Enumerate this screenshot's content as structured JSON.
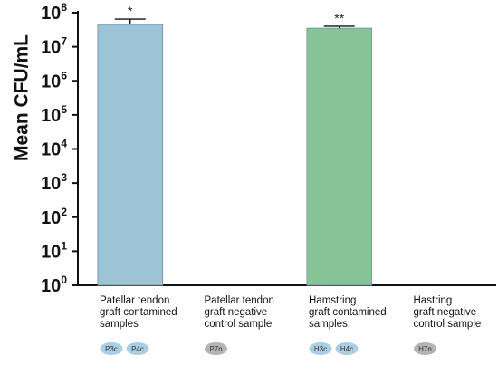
{
  "chart_data": {
    "type": "bar",
    "ylabel": "Mean CFU/mL",
    "yscale": "log",
    "ylim": [
      1,
      100000000
    ],
    "yticks": [
      {
        "base": "10",
        "exp": "0"
      },
      {
        "base": "10",
        "exp": "1"
      },
      {
        "base": "10",
        "exp": "2"
      },
      {
        "base": "10",
        "exp": "3"
      },
      {
        "base": "10",
        "exp": "4"
      },
      {
        "base": "10",
        "exp": "5"
      },
      {
        "base": "10",
        "exp": "6"
      },
      {
        "base": "10",
        "exp": "7"
      },
      {
        "base": "10",
        "exp": "8"
      }
    ],
    "categories": [
      {
        "label_lines": [
          "Patellar tendon",
          "graft contamined",
          "samples"
        ],
        "value": 45000000,
        "error": 20000000,
        "significance": "*",
        "color": "#9dc4d6",
        "samples": [
          {
            "label": "P3c",
            "color": "#a8d0e2"
          },
          {
            "label": "P4c",
            "color": "#a8d0e2"
          }
        ]
      },
      {
        "label_lines": [
          "Patellar tendon",
          "graft negative",
          "control sample"
        ],
        "value": null,
        "error": null,
        "significance": "",
        "color": "#9dc4d6",
        "samples": [
          {
            "label": "P7n",
            "color": "#b4b4b4"
          }
        ]
      },
      {
        "label_lines": [
          "Hamstring",
          "graft contamined",
          "samples"
        ],
        "value": 35000000,
        "error": 5000000,
        "significance": "**",
        "color": "#86c496",
        "samples": [
          {
            "label": "H3c",
            "color": "#a8d0e2"
          },
          {
            "label": "H4c",
            "color": "#a8d0e2"
          }
        ]
      },
      {
        "label_lines": [
          "Hastring",
          "graft negative",
          "control sample"
        ],
        "value": null,
        "error": null,
        "significance": "",
        "color": "#86c496",
        "samples": [
          {
            "label": "H7n",
            "color": "#b4b4b4"
          }
        ]
      }
    ]
  }
}
